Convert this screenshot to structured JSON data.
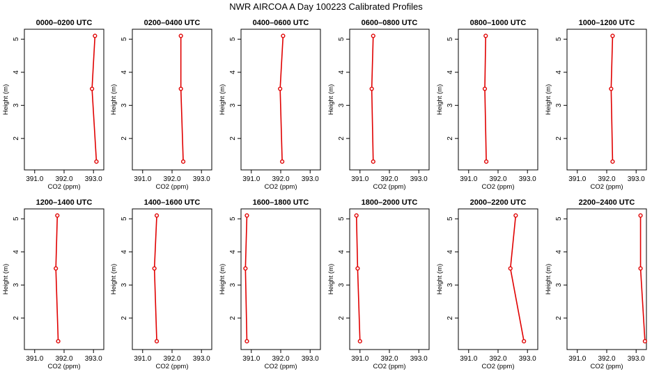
{
  "chart_data": {
    "type": "line",
    "title": "NWR AIRCOA A  Day 100223  Calibrated Profiles",
    "xlabel": "CO2 (ppm)",
    "ylabel": "Height (m)",
    "xlim": [
      390.65,
      393.35
    ],
    "ylim": [
      1.05,
      5.3
    ],
    "xticks": [
      391.0,
      392.0,
      393.0
    ],
    "xtick_labels": [
      "391.0",
      "392.0",
      "393.0"
    ],
    "yticks": [
      2,
      3,
      4,
      5
    ],
    "ytick_labels": [
      "2",
      "3",
      "4",
      "5"
    ],
    "heights": [
      5.1,
      3.5,
      1.3
    ],
    "panels": [
      {
        "title": "0000–0200 UTC",
        "co2": [
          393.05,
          392.95,
          393.1
        ]
      },
      {
        "title": "0200–0400 UTC",
        "co2": [
          392.3,
          392.3,
          392.38
        ]
      },
      {
        "title": "0400–0600 UTC",
        "co2": [
          392.08,
          391.98,
          392.05
        ]
      },
      {
        "title": "0600–0800 UTC",
        "co2": [
          391.45,
          391.4,
          391.45
        ]
      },
      {
        "title": "0800–1000 UTC",
        "co2": [
          391.58,
          391.55,
          391.6
        ]
      },
      {
        "title": "1000–1200 UTC",
        "co2": [
          392.2,
          392.15,
          392.2
        ]
      },
      {
        "title": "1200–1400 UTC",
        "co2": [
          391.77,
          391.72,
          391.8
        ]
      },
      {
        "title": "1400–1600 UTC",
        "co2": [
          391.48,
          391.4,
          391.48
        ]
      },
      {
        "title": "1600–1800 UTC",
        "co2": [
          390.85,
          390.8,
          390.85
        ]
      },
      {
        "title": "1800–2000 UTC",
        "co2": [
          390.88,
          390.92,
          391.0
        ]
      },
      {
        "title": "2000–2200 UTC",
        "co2": [
          392.6,
          392.42,
          392.88
        ]
      },
      {
        "title": "2200–2400 UTC",
        "co2": [
          393.15,
          393.15,
          393.3
        ]
      }
    ]
  }
}
